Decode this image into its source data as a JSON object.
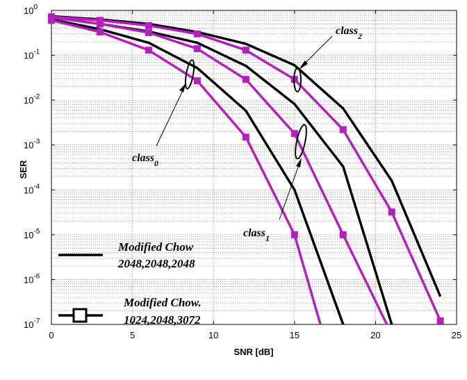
{
  "chart_data": {
    "type": "line",
    "xlabel": "SNR [dB]",
    "ylabel": "SER",
    "xlim": [
      0,
      25
    ],
    "ylim": [
      1e-07,
      1
    ],
    "yscale": "log",
    "grid": true,
    "x_ticks": [
      "0",
      "5",
      "10",
      "15",
      "20",
      "25"
    ],
    "y_ticks": [
      {
        "base": "10",
        "exp": "0"
      },
      {
        "base": "10",
        "exp": "-1"
      },
      {
        "base": "10",
        "exp": "-2"
      },
      {
        "base": "10",
        "exp": "-3"
      },
      {
        "base": "10",
        "exp": "-4"
      },
      {
        "base": "10",
        "exp": "-5"
      },
      {
        "base": "10",
        "exp": "-6"
      },
      {
        "base": "10",
        "exp": "-7"
      }
    ],
    "series": [
      {
        "group": "black",
        "color": "#000000",
        "marker": "none",
        "x": [
          0,
          3,
          6,
          9,
          12,
          15,
          18
        ],
        "y": [
          0.63,
          0.38,
          0.19,
          0.052,
          0.0058,
          0.0001,
          1e-07
        ]
      },
      {
        "group": "black",
        "color": "#000000",
        "marker": "none",
        "x": [
          0,
          3,
          6,
          9,
          12,
          15,
          18,
          21
        ],
        "y": [
          0.7,
          0.5,
          0.34,
          0.19,
          0.058,
          0.0082,
          0.00033,
          1e-07
        ]
      },
      {
        "group": "black",
        "color": "#000000",
        "marker": "none",
        "x": [
          0,
          3,
          6,
          9,
          12,
          15,
          18,
          21,
          24
        ],
        "y": [
          0.74,
          0.63,
          0.5,
          0.33,
          0.18,
          0.06,
          0.0065,
          0.00016,
          4.2e-07
        ]
      },
      {
        "group": "magenta",
        "color": "#b51ebf",
        "marker": "square",
        "x": [
          0,
          3,
          6,
          9,
          12,
          15,
          16.6
        ],
        "y": [
          0.6,
          0.33,
          0.13,
          0.027,
          0.0015,
          1e-05,
          1e-07
        ]
      },
      {
        "group": "magenta",
        "color": "#b51ebf",
        "marker": "square",
        "x": [
          0,
          3,
          6,
          9,
          12,
          15,
          18,
          20.7
        ],
        "y": [
          0.7,
          0.5,
          0.32,
          0.14,
          0.029,
          0.0018,
          1e-05,
          1e-07
        ]
      },
      {
        "group": "magenta",
        "color": "#b51ebf",
        "marker": "square",
        "x": [
          0,
          3,
          6,
          9,
          12,
          15,
          18,
          21,
          24
        ],
        "y": [
          0.72,
          0.6,
          0.46,
          0.3,
          0.13,
          0.029,
          0.0022,
          3.2e-05,
          1.2e-07
        ]
      }
    ],
    "annotations": [
      {
        "base": "class",
        "sub": "0"
      },
      {
        "base": "class",
        "sub": "1"
      },
      {
        "base": "class",
        "sub": "2"
      }
    ],
    "legend": [
      {
        "line1": "Modified Chow",
        "line2": "2048,2048,2048",
        "color": "#000000",
        "marker": "none"
      },
      {
        "line1": "Modified Chow.",
        "line2": "1024,2048,3072",
        "color": "#000000",
        "marker": "square"
      }
    ]
  }
}
